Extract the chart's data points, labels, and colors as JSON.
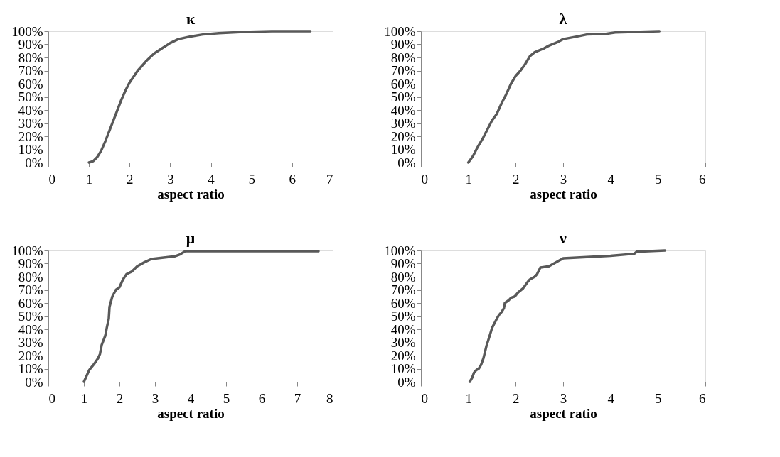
{
  "chart_data": [
    {
      "type": "line",
      "title": "κ",
      "xlabel": "aspect ratio",
      "xlim": [
        0,
        7
      ],
      "xticks": [
        0,
        1,
        2,
        3,
        4,
        5,
        6,
        7
      ],
      "ylim": [
        0,
        100
      ],
      "yticks": [
        {
          "value": 0,
          "label": "0%"
        },
        {
          "value": 10,
          "label": "10%"
        },
        {
          "value": 20,
          "label": "20%"
        },
        {
          "value": 30,
          "label": "30%"
        },
        {
          "value": 40,
          "label": "40%"
        },
        {
          "value": 50,
          "label": "50%"
        },
        {
          "value": 60,
          "label": "60%"
        },
        {
          "value": 70,
          "label": "70%"
        },
        {
          "value": 80,
          "label": "80%"
        },
        {
          "value": 90,
          "label": "90%"
        },
        {
          "value": 100,
          "label": "100%"
        }
      ],
      "x": [
        1.0,
        1.1,
        1.2,
        1.3,
        1.4,
        1.5,
        1.6,
        1.7,
        1.8,
        1.9,
        2.0,
        2.2,
        2.4,
        2.6,
        2.8,
        3.0,
        3.2,
        3.5,
        3.8,
        4.2,
        4.8,
        5.5,
        6.45
      ],
      "series": [
        {
          "color": "#595959",
          "values": [
            0,
            1,
            4,
            9,
            16,
            24,
            32,
            40,
            48,
            55,
            61,
            70,
            77,
            83,
            87,
            91,
            94,
            96,
            97.5,
            98.5,
            99.5,
            100,
            100
          ]
        }
      ]
    },
    {
      "type": "line",
      "title": "λ",
      "xlabel": "aspect ratio",
      "xlim": [
        0,
        6
      ],
      "xticks": [
        0,
        1,
        2,
        3,
        4,
        5,
        6
      ],
      "ylim": [
        0,
        100
      ],
      "yticks": [
        {
          "value": 0,
          "label": "0%"
        },
        {
          "value": 10,
          "label": "10%"
        },
        {
          "value": 20,
          "label": "20%"
        },
        {
          "value": 30,
          "label": "30%"
        },
        {
          "value": 40,
          "label": "40%"
        },
        {
          "value": 50,
          "label": "50%"
        },
        {
          "value": 60,
          "label": "60%"
        },
        {
          "value": 70,
          "label": "70%"
        },
        {
          "value": 80,
          "label": "80%"
        },
        {
          "value": 90,
          "label": "90%"
        },
        {
          "value": 100,
          "label": "100%"
        }
      ],
      "x": [
        1.0,
        1.1,
        1.2,
        1.3,
        1.4,
        1.5,
        1.6,
        1.7,
        1.8,
        1.9,
        2.0,
        2.1,
        2.2,
        2.3,
        2.4,
        2.6,
        2.7,
        2.9,
        3.0,
        3.3,
        3.5,
        3.9,
        4.1,
        4.5,
        5.03
      ],
      "series": [
        {
          "color": "#595959",
          "values": [
            0,
            5,
            12,
            18,
            25,
            32,
            37,
            45,
            52,
            60,
            66,
            70,
            75,
            81,
            84,
            87,
            89,
            92,
            94,
            96,
            97.5,
            98,
            99,
            99.5,
            100
          ]
        }
      ]
    },
    {
      "type": "line",
      "title": "μ",
      "xlabel": "aspect ratio",
      "xlim": [
        0,
        8
      ],
      "xticks": [
        0,
        1,
        2,
        3,
        4,
        5,
        6,
        7,
        8
      ],
      "ylim": [
        0,
        100
      ],
      "yticks": [
        {
          "value": 0,
          "label": "0%"
        },
        {
          "value": 10,
          "label": "10%"
        },
        {
          "value": 20,
          "label": "20%"
        },
        {
          "value": 30,
          "label": "30%"
        },
        {
          "value": 40,
          "label": "40%"
        },
        {
          "value": 50,
          "label": "50%"
        },
        {
          "value": 60,
          "label": "60%"
        },
        {
          "value": 70,
          "label": "70%"
        },
        {
          "value": 80,
          "label": "80%"
        },
        {
          "value": 90,
          "label": "90%"
        },
        {
          "value": 100,
          "label": "100%"
        }
      ],
      "x": [
        1.0,
        1.05,
        1.15,
        1.3,
        1.4,
        1.45,
        1.5,
        1.6,
        1.65,
        1.7,
        1.72,
        1.8,
        1.9,
        2.0,
        2.1,
        2.2,
        2.35,
        2.5,
        2.7,
        2.9,
        3.2,
        3.55,
        3.7,
        3.85,
        5.0,
        7.6
      ],
      "series": [
        {
          "color": "#595959",
          "values": [
            0,
            3,
            9,
            14,
            18,
            21,
            28,
            35,
            42,
            48,
            57,
            65,
            70,
            72,
            78,
            82,
            84,
            88,
            91,
            93.5,
            94.5,
            95.5,
            97,
            99.5,
            99.5,
            99.5
          ]
        }
      ]
    },
    {
      "type": "line",
      "title": "ν",
      "xlabel": "aspect ratio",
      "xlim": [
        0,
        6
      ],
      "xticks": [
        0,
        1,
        2,
        3,
        4,
        5,
        6
      ],
      "ylim": [
        0,
        100
      ],
      "yticks": [
        {
          "value": 0,
          "label": "0%"
        },
        {
          "value": 10,
          "label": "10%"
        },
        {
          "value": 20,
          "label": "20%"
        },
        {
          "value": 30,
          "label": "30%"
        },
        {
          "value": 40,
          "label": "40%"
        },
        {
          "value": 50,
          "label": "50%"
        },
        {
          "value": 60,
          "label": "60%"
        },
        {
          "value": 70,
          "label": "70%"
        },
        {
          "value": 80,
          "label": "80%"
        },
        {
          "value": 90,
          "label": "90%"
        },
        {
          "value": 100,
          "label": "100%"
        }
      ],
      "x": [
        1.03,
        1.08,
        1.12,
        1.17,
        1.22,
        1.27,
        1.32,
        1.38,
        1.45,
        1.5,
        1.6,
        1.65,
        1.7,
        1.75,
        1.77,
        1.85,
        1.9,
        1.98,
        2.05,
        2.15,
        2.25,
        2.3,
        2.4,
        2.45,
        2.52,
        2.7,
        2.8,
        2.9,
        3.0,
        3.5,
        4.0,
        4.5,
        4.55,
        5.15
      ],
      "series": [
        {
          "color": "#595959",
          "values": [
            0,
            3,
            7,
            9,
            10,
            13,
            18,
            27,
            35,
            41,
            48,
            51,
            53,
            56,
            60,
            62,
            64,
            65,
            68,
            71,
            76,
            78,
            80,
            82,
            87,
            88,
            90,
            92,
            94,
            95,
            96,
            97.5,
            99,
            100
          ]
        }
      ]
    }
  ]
}
